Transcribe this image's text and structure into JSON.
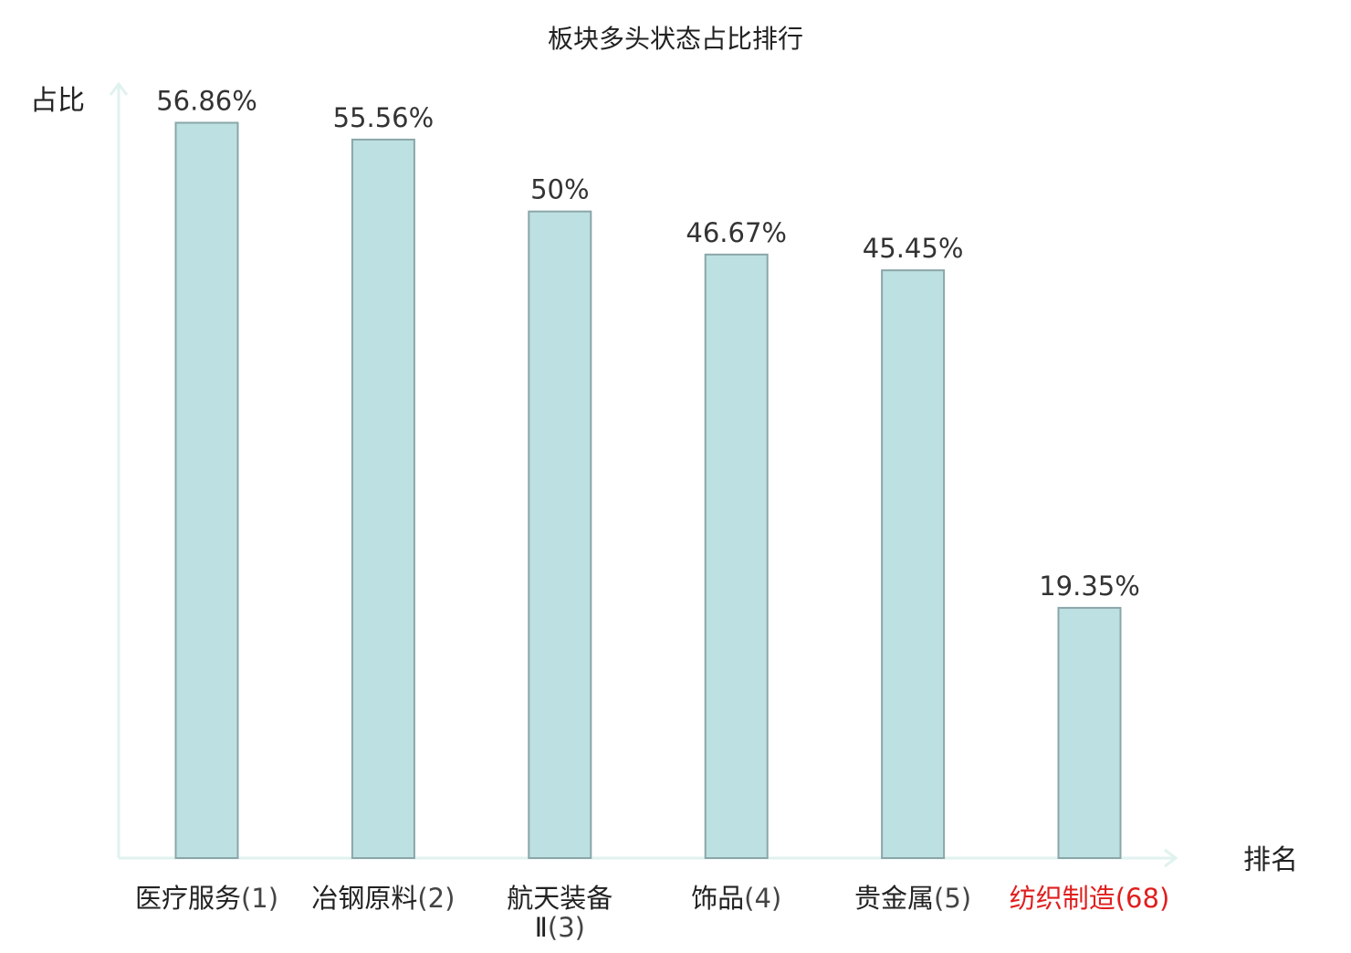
{
  "chart_data": {
    "type": "bar",
    "title": "板块多头状态占比排行",
    "ylabel": "占比",
    "xlabel": "排名",
    "categories": [
      {
        "name": "医疗服务",
        "rank": "(1)",
        "highlight": false
      },
      {
        "name": "冶钢原料",
        "rank": "(2)",
        "highlight": false
      },
      {
        "name": "航天装备",
        "name2": "Ⅱ",
        "rank": "(3)",
        "highlight": false
      },
      {
        "name": "饰品",
        "rank": "(4)",
        "highlight": false
      },
      {
        "name": "贵金属",
        "rank": "(5)",
        "highlight": false
      },
      {
        "name": "纺织制造",
        "rank": "(68)",
        "highlight": true
      }
    ],
    "values": [
      56.86,
      55.56,
      50,
      46.67,
      45.45,
      19.35
    ],
    "value_labels": [
      "56.86%",
      "55.56%",
      "50%",
      "46.67%",
      "45.45%",
      "19.35%"
    ],
    "ylim": [
      0,
      60
    ],
    "grid": false,
    "colors": {
      "bar_fill": "#bde0e2",
      "bar_stroke": "#8aa6a8",
      "axis": "#e0f2ef",
      "label_text": "#333333",
      "tick_text": "#222222",
      "highlight_text": "#e01e1e"
    }
  }
}
